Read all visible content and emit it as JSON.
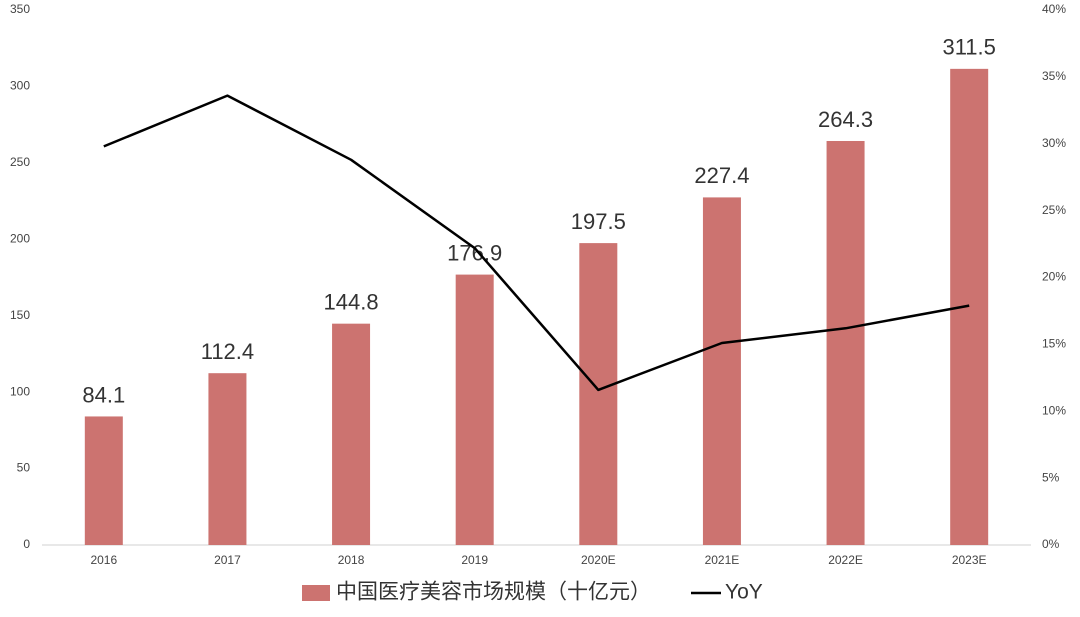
{
  "chart_data": {
    "type": "bar",
    "categories": [
      "2016",
      "2017",
      "2018",
      "2019",
      "2020E",
      "2021E",
      "2022E",
      "2023E"
    ],
    "series": [
      {
        "name": "中国医疗美容市场规模（十亿元）",
        "type": "bar",
        "color": "#cc7370",
        "values": [
          84.1,
          112.4,
          144.8,
          176.9,
          197.5,
          227.4,
          264.3,
          311.5
        ]
      },
      {
        "name": "YoY",
        "type": "line",
        "axis": "y2",
        "color": "#000000",
        "values": [
          29.8,
          33.6,
          28.8,
          22.2,
          11.6,
          15.1,
          16.2,
          17.9
        ]
      }
    ],
    "ylim": [
      0,
      350
    ],
    "yticks": [
      0,
      50,
      100,
      150,
      200,
      250,
      300,
      350
    ],
    "y2lim": [
      0,
      40
    ],
    "y2ticks": [
      {
        "value": 0,
        "label": "0%"
      },
      {
        "value": 5,
        "label": "5%"
      },
      {
        "value": 10,
        "label": "10%"
      },
      {
        "value": 15,
        "label": "15%"
      },
      {
        "value": 20,
        "label": "20%"
      },
      {
        "value": 25,
        "label": "25%"
      },
      {
        "value": 30,
        "label": "30%"
      },
      {
        "value": 35,
        "label": "35%"
      },
      {
        "value": 40,
        "label": "40%"
      }
    ],
    "legend": "bottom"
  }
}
